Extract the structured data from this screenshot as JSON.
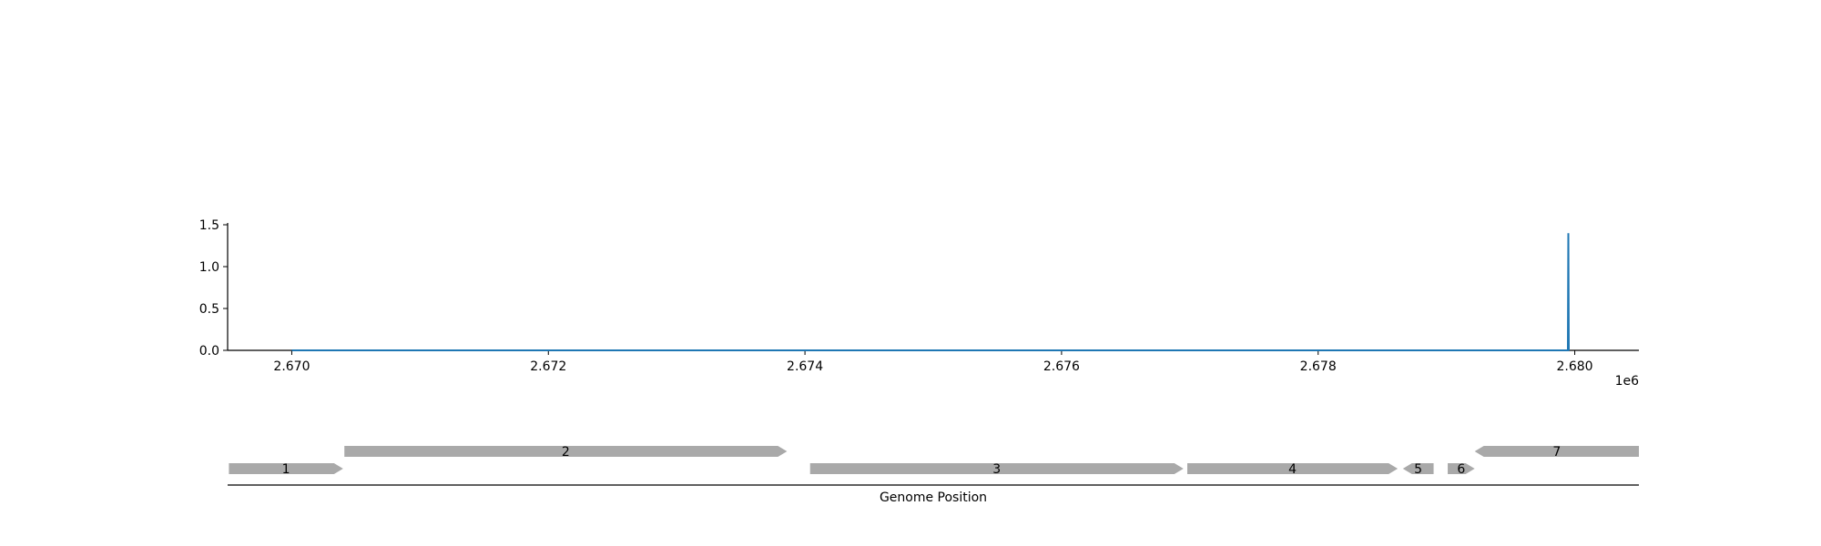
{
  "chart_data": [
    {
      "type": "line",
      "x_start": 2670000,
      "x_step": 10,
      "x_peak": 2679950,
      "y_peak": 1.4,
      "baseline": 0.0,
      "xlim": [
        2669500,
        2680500
      ],
      "ylim": [
        0.0,
        1.5
      ],
      "x_ticks": [
        2670000,
        2672000,
        2674000,
        2676000,
        2678000,
        2680000
      ],
      "x_tick_labels": [
        "2.670",
        "2.672",
        "2.674",
        "2.676",
        "2.678",
        "2.680"
      ],
      "x_offset_label": "1e6",
      "y_ticks": [
        0.0,
        0.5,
        1.0,
        1.5
      ],
      "y_tick_labels": [
        "0.0",
        "0.5",
        "1.0",
        "1.5"
      ],
      "grid": false,
      "line_color": "#1f77b4"
    },
    {
      "type": "gene-track",
      "xlabel": "Genome Position",
      "genes": [
        {
          "label": "1",
          "start": 2669510,
          "end": 2670400,
          "strand": "+",
          "row": 0
        },
        {
          "label": "2",
          "start": 2670410,
          "end": 2673860,
          "strand": "+",
          "row": 1
        },
        {
          "label": "3",
          "start": 2674040,
          "end": 2676950,
          "strand": "+",
          "row": 0
        },
        {
          "label": "4",
          "start": 2676980,
          "end": 2678620,
          "strand": "+",
          "row": 0
        },
        {
          "label": "5",
          "start": 2678660,
          "end": 2678900,
          "strand": "-",
          "row": 0
        },
        {
          "label": "6",
          "start": 2679010,
          "end": 2679220,
          "strand": "+",
          "row": 0
        },
        {
          "label": "7",
          "start": 2679220,
          "end": 2680500,
          "strand": "-",
          "row": 1
        }
      ],
      "gene_color": "#a9a9a9"
    }
  ]
}
